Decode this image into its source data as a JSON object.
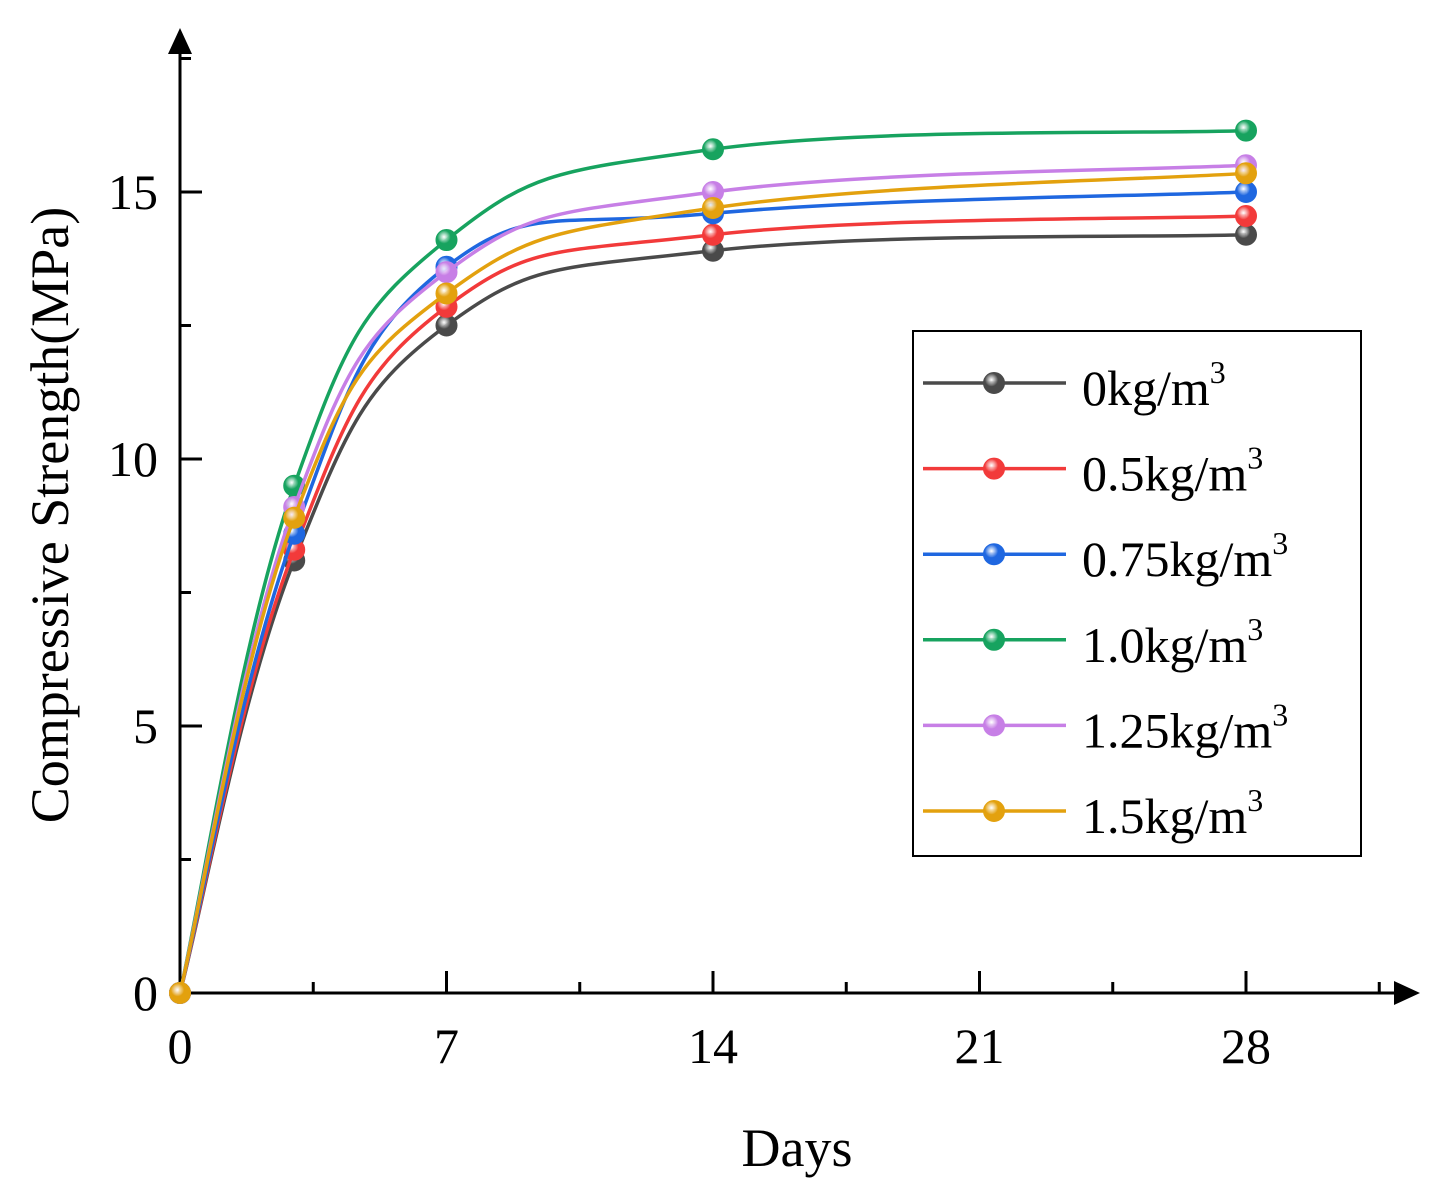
{
  "chart_data": {
    "type": "line",
    "title": "",
    "xlabel": "Days",
    "ylabel": "Compressive Strength(MPa)",
    "xlim": [
      0,
      31.5
    ],
    "ylim": [
      0,
      17.5
    ],
    "x_ticks": [
      0,
      7,
      14,
      21,
      28
    ],
    "y_ticks": [
      0,
      5,
      10,
      15
    ],
    "x_tick_labels": [
      "0",
      "7",
      "14",
      "21",
      "28"
    ],
    "y_tick_labels": [
      "0",
      "5",
      "10",
      "15"
    ],
    "x": [
      0,
      3,
      7,
      14,
      28
    ],
    "legend_position": "center-right",
    "series": [
      {
        "name": "0kg/m",
        "unit_sup": "3",
        "color": "#4a4a4a",
        "values": [
          0,
          8.1,
          12.5,
          13.9,
          14.2
        ]
      },
      {
        "name": "0.5kg/m",
        "unit_sup": "3",
        "color": "#f23a3a",
        "values": [
          0,
          8.3,
          12.85,
          14.2,
          14.55
        ]
      },
      {
        "name": "0.75kg/m",
        "unit_sup": "3",
        "color": "#1f67e0",
        "values": [
          0,
          8.6,
          13.6,
          14.6,
          15.0
        ]
      },
      {
        "name": "1.0kg/m",
        "unit_sup": "3",
        "color": "#17a35f",
        "values": [
          0,
          9.5,
          14.1,
          15.8,
          16.15
        ]
      },
      {
        "name": "1.25kg/m",
        "unit_sup": "3",
        "color": "#c77fe6",
        "values": [
          0,
          9.1,
          13.5,
          15.0,
          15.5
        ]
      },
      {
        "name": "1.5kg/m",
        "unit_sup": "3",
        "color": "#e3a10e",
        "values": [
          0,
          8.9,
          13.1,
          14.7,
          15.35
        ]
      }
    ]
  }
}
